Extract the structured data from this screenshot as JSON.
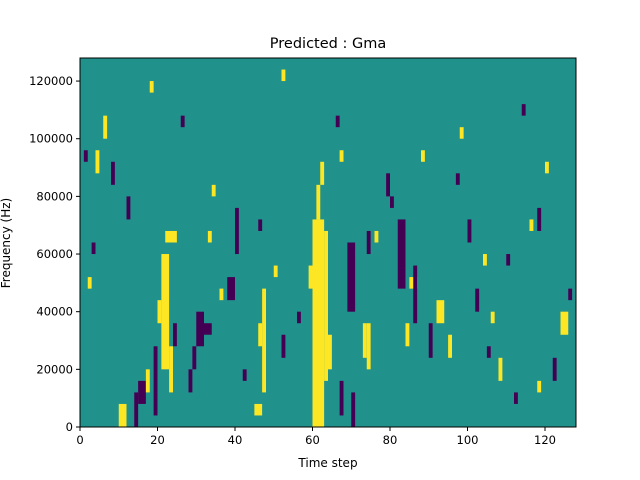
{
  "chart_data": {
    "type": "heatmap",
    "title": "Predicted : Gma",
    "xlabel": "Time step",
    "ylabel": "Frequency (Hz)",
    "xlim": [
      0,
      128
    ],
    "ylim": [
      0,
      128000
    ],
    "x_ticks": [
      0,
      20,
      40,
      60,
      80,
      100,
      120
    ],
    "y_ticks": [
      0,
      20000,
      40000,
      60000,
      80000,
      100000,
      120000
    ],
    "x_tick_labels": [
      "0",
      "20",
      "40",
      "60",
      "80",
      "100",
      "120"
    ],
    "y_tick_labels": [
      "0",
      "20000",
      "40000",
      "60000",
      "80000",
      "100000",
      "120000"
    ],
    "n_time_steps": 128,
    "n_frequency_bins": 32,
    "frequency_bin_width": 4000,
    "value_levels": [
      -1,
      0,
      1
    ],
    "colormap": {
      "-1": "#440154",
      "0": "#21918c",
      "1": "#fde725"
    },
    "background_value": 0,
    "marks": [
      {
        "value": 1,
        "t": [
          10,
          12
        ],
        "f": [
          0,
          8000
        ]
      },
      {
        "value": -1,
        "t": [
          15,
          17
        ],
        "f": [
          8000,
          16000
        ]
      },
      {
        "value": -1,
        "t": [
          14,
          15
        ],
        "f": [
          0,
          12000
        ]
      },
      {
        "value": 1,
        "t": [
          17,
          18
        ],
        "f": [
          12000,
          20000
        ]
      },
      {
        "value": 1,
        "t": [
          21,
          23
        ],
        "f": [
          20000,
          60000
        ]
      },
      {
        "value": 1,
        "t": [
          20,
          21
        ],
        "f": [
          36000,
          44000
        ]
      },
      {
        "value": 1,
        "t": [
          22,
          25
        ],
        "f": [
          64000,
          68000
        ]
      },
      {
        "value": -1,
        "t": [
          19,
          20
        ],
        "f": [
          4000,
          28000
        ]
      },
      {
        "value": 1,
        "t": [
          23,
          24
        ],
        "f": [
          12000,
          28000
        ]
      },
      {
        "value": -1,
        "t": [
          30,
          32
        ],
        "f": [
          28000,
          40000
        ]
      },
      {
        "value": -1,
        "t": [
          32,
          34
        ],
        "f": [
          32000,
          36000
        ]
      },
      {
        "value": -1,
        "t": [
          29,
          30
        ],
        "f": [
          20000,
          28000
        ]
      },
      {
        "value": -1,
        "t": [
          38,
          40
        ],
        "f": [
          44000,
          52000
        ]
      },
      {
        "value": -1,
        "t": [
          40,
          41
        ],
        "f": [
          60000,
          76000
        ]
      },
      {
        "value": 1,
        "t": [
          45,
          47
        ],
        "f": [
          4000,
          8000
        ]
      },
      {
        "value": 1,
        "t": [
          47,
          48
        ],
        "f": [
          12000,
          48000
        ]
      },
      {
        "value": 1,
        "t": [
          46,
          47
        ],
        "f": [
          28000,
          36000
        ]
      },
      {
        "value": -1,
        "t": [
          52,
          53
        ],
        "f": [
          24000,
          32000
        ]
      },
      {
        "value": 1,
        "t": [
          60,
          63
        ],
        "f": [
          0,
          72000
        ]
      },
      {
        "value": 1,
        "t": [
          63,
          64
        ],
        "f": [
          16000,
          68000
        ]
      },
      {
        "value": 1,
        "t": [
          61,
          62
        ],
        "f": [
          72000,
          84000
        ]
      },
      {
        "value": 1,
        "t": [
          59,
          60
        ],
        "f": [
          48000,
          56000
        ]
      },
      {
        "value": 1,
        "t": [
          62,
          63
        ],
        "f": [
          84000,
          92000
        ]
      },
      {
        "value": 1,
        "t": [
          64,
          65
        ],
        "f": [
          20000,
          32000
        ]
      },
      {
        "value": -1,
        "t": [
          70,
          71
        ],
        "f": [
          0,
          12000
        ]
      },
      {
        "value": -1,
        "t": [
          69,
          71
        ],
        "f": [
          40000,
          64000
        ]
      },
      {
        "value": -1,
        "t": [
          67,
          68
        ],
        "f": [
          4000,
          16000
        ]
      },
      {
        "value": 1,
        "t": [
          73,
          74
        ],
        "f": [
          24000,
          36000
        ]
      },
      {
        "value": 1,
        "t": [
          74,
          75
        ],
        "f": [
          20000,
          36000
        ]
      },
      {
        "value": -1,
        "t": [
          74,
          75
        ],
        "f": [
          60000,
          68000
        ]
      },
      {
        "value": -1,
        "t": [
          79,
          80
        ],
        "f": [
          80000,
          88000
        ]
      },
      {
        "value": -1,
        "t": [
          82,
          84
        ],
        "f": [
          48000,
          72000
        ]
      },
      {
        "value": 1,
        "t": [
          85,
          87
        ],
        "f": [
          48000,
          52000
        ]
      },
      {
        "value": -1,
        "t": [
          86,
          87
        ],
        "f": [
          36000,
          56000
        ]
      },
      {
        "value": 1,
        "t": [
          92,
          94
        ],
        "f": [
          36000,
          44000
        ]
      },
      {
        "value": 1,
        "t": [
          95,
          96
        ],
        "f": [
          24000,
          32000
        ]
      },
      {
        "value": -1,
        "t": [
          102,
          103
        ],
        "f": [
          40000,
          48000
        ]
      },
      {
        "value": -1,
        "t": [
          105,
          106
        ],
        "f": [
          24000,
          28000
        ]
      },
      {
        "value": 1,
        "t": [
          108,
          109
        ],
        "f": [
          16000,
          24000
        ]
      },
      {
        "value": -1,
        "t": [
          112,
          113
        ],
        "f": [
          8000,
          12000
        ]
      },
      {
        "value": 1,
        "t": [
          118,
          119
        ],
        "f": [
          12000,
          16000
        ]
      },
      {
        "value": -1,
        "t": [
          122,
          123
        ],
        "f": [
          16000,
          24000
        ]
      },
      {
        "value": 1,
        "t": [
          124,
          126
        ],
        "f": [
          32000,
          40000
        ]
      },
      {
        "value": -1,
        "t": [
          12,
          13
        ],
        "f": [
          72000,
          80000
        ]
      },
      {
        "value": 1,
        "t": [
          4,
          5
        ],
        "f": [
          88000,
          96000
        ]
      },
      {
        "value": -1,
        "t": [
          3,
          4
        ],
        "f": [
          60000,
          64000
        ]
      },
      {
        "value": -1,
        "t": [
          26,
          27
        ],
        "f": [
          104000,
          108000
        ]
      },
      {
        "value": 1,
        "t": [
          34,
          35
        ],
        "f": [
          80000,
          84000
        ]
      },
      {
        "value": -1,
        "t": [
          46,
          47
        ],
        "f": [
          68000,
          72000
        ]
      },
      {
        "value": 1,
        "t": [
          52,
          53
        ],
        "f": [
          120000,
          124000
        ]
      },
      {
        "value": 1,
        "t": [
          67,
          68
        ],
        "f": [
          92000,
          96000
        ]
      },
      {
        "value": -1,
        "t": [
          80,
          81
        ],
        "f": [
          76000,
          80000
        ]
      },
      {
        "value": 1,
        "t": [
          88,
          89
        ],
        "f": [
          92000,
          96000
        ]
      },
      {
        "value": -1,
        "t": [
          97,
          98
        ],
        "f": [
          84000,
          88000
        ]
      },
      {
        "value": 1,
        "t": [
          104,
          105
        ],
        "f": [
          56000,
          60000
        ]
      },
      {
        "value": -1,
        "t": [
          114,
          115
        ],
        "f": [
          108000,
          112000
        ]
      },
      {
        "value": 1,
        "t": [
          120,
          121
        ],
        "f": [
          88000,
          92000
        ]
      },
      {
        "value": -1,
        "t": [
          126,
          127
        ],
        "f": [
          44000,
          48000
        ]
      },
      {
        "value": 1,
        "t": [
          6,
          7
        ],
        "f": [
          100000,
          108000
        ]
      },
      {
        "value": -1,
        "t": [
          8,
          9
        ],
        "f": [
          84000,
          92000
        ]
      },
      {
        "value": 1,
        "t": [
          18,
          19
        ],
        "f": [
          116000,
          120000
        ]
      },
      {
        "value": -1,
        "t": [
          28,
          29
        ],
        "f": [
          12000,
          20000
        ]
      },
      {
        "value": 1,
        "t": [
          36,
          37
        ],
        "f": [
          44000,
          48000
        ]
      },
      {
        "value": -1,
        "t": [
          42,
          43
        ],
        "f": [
          16000,
          20000
        ]
      },
      {
        "value": 1,
        "t": [
          50,
          51
        ],
        "f": [
          52000,
          56000
        ]
      },
      {
        "value": -1,
        "t": [
          56,
          57
        ],
        "f": [
          36000,
          40000
        ]
      },
      {
        "value": 1,
        "t": [
          76,
          77
        ],
        "f": [
          64000,
          68000
        ]
      },
      {
        "value": -1,
        "t": [
          90,
          91
        ],
        "f": [
          24000,
          36000
        ]
      },
      {
        "value": 1,
        "t": [
          98,
          99
        ],
        "f": [
          100000,
          104000
        ]
      },
      {
        "value": -1,
        "t": [
          110,
          111
        ],
        "f": [
          56000,
          60000
        ]
      },
      {
        "value": 1,
        "t": [
          116,
          117
        ],
        "f": [
          68000,
          72000
        ]
      },
      {
        "value": -1,
        "t": [
          1,
          2
        ],
        "f": [
          92000,
          96000
        ]
      },
      {
        "value": 1,
        "t": [
          2,
          3
        ],
        "f": [
          48000,
          52000
        ]
      },
      {
        "value": -1,
        "t": [
          24,
          25
        ],
        "f": [
          28000,
          36000
        ]
      },
      {
        "value": 1,
        "t": [
          33,
          34
        ],
        "f": [
          64000,
          68000
        ]
      },
      {
        "value": -1,
        "t": [
          66,
          67
        ],
        "f": [
          104000,
          108000
        ]
      },
      {
        "value": 1,
        "t": [
          84,
          85
        ],
        "f": [
          28000,
          36000
        ]
      },
      {
        "value": -1,
        "t": [
          100,
          101
        ],
        "f": [
          64000,
          72000
        ]
      },
      {
        "value": 1,
        "t": [
          106,
          107
        ],
        "f": [
          36000,
          40000
        ]
      },
      {
        "value": -1,
        "t": [
          118,
          119
        ],
        "f": [
          68000,
          76000
        ]
      }
    ]
  }
}
